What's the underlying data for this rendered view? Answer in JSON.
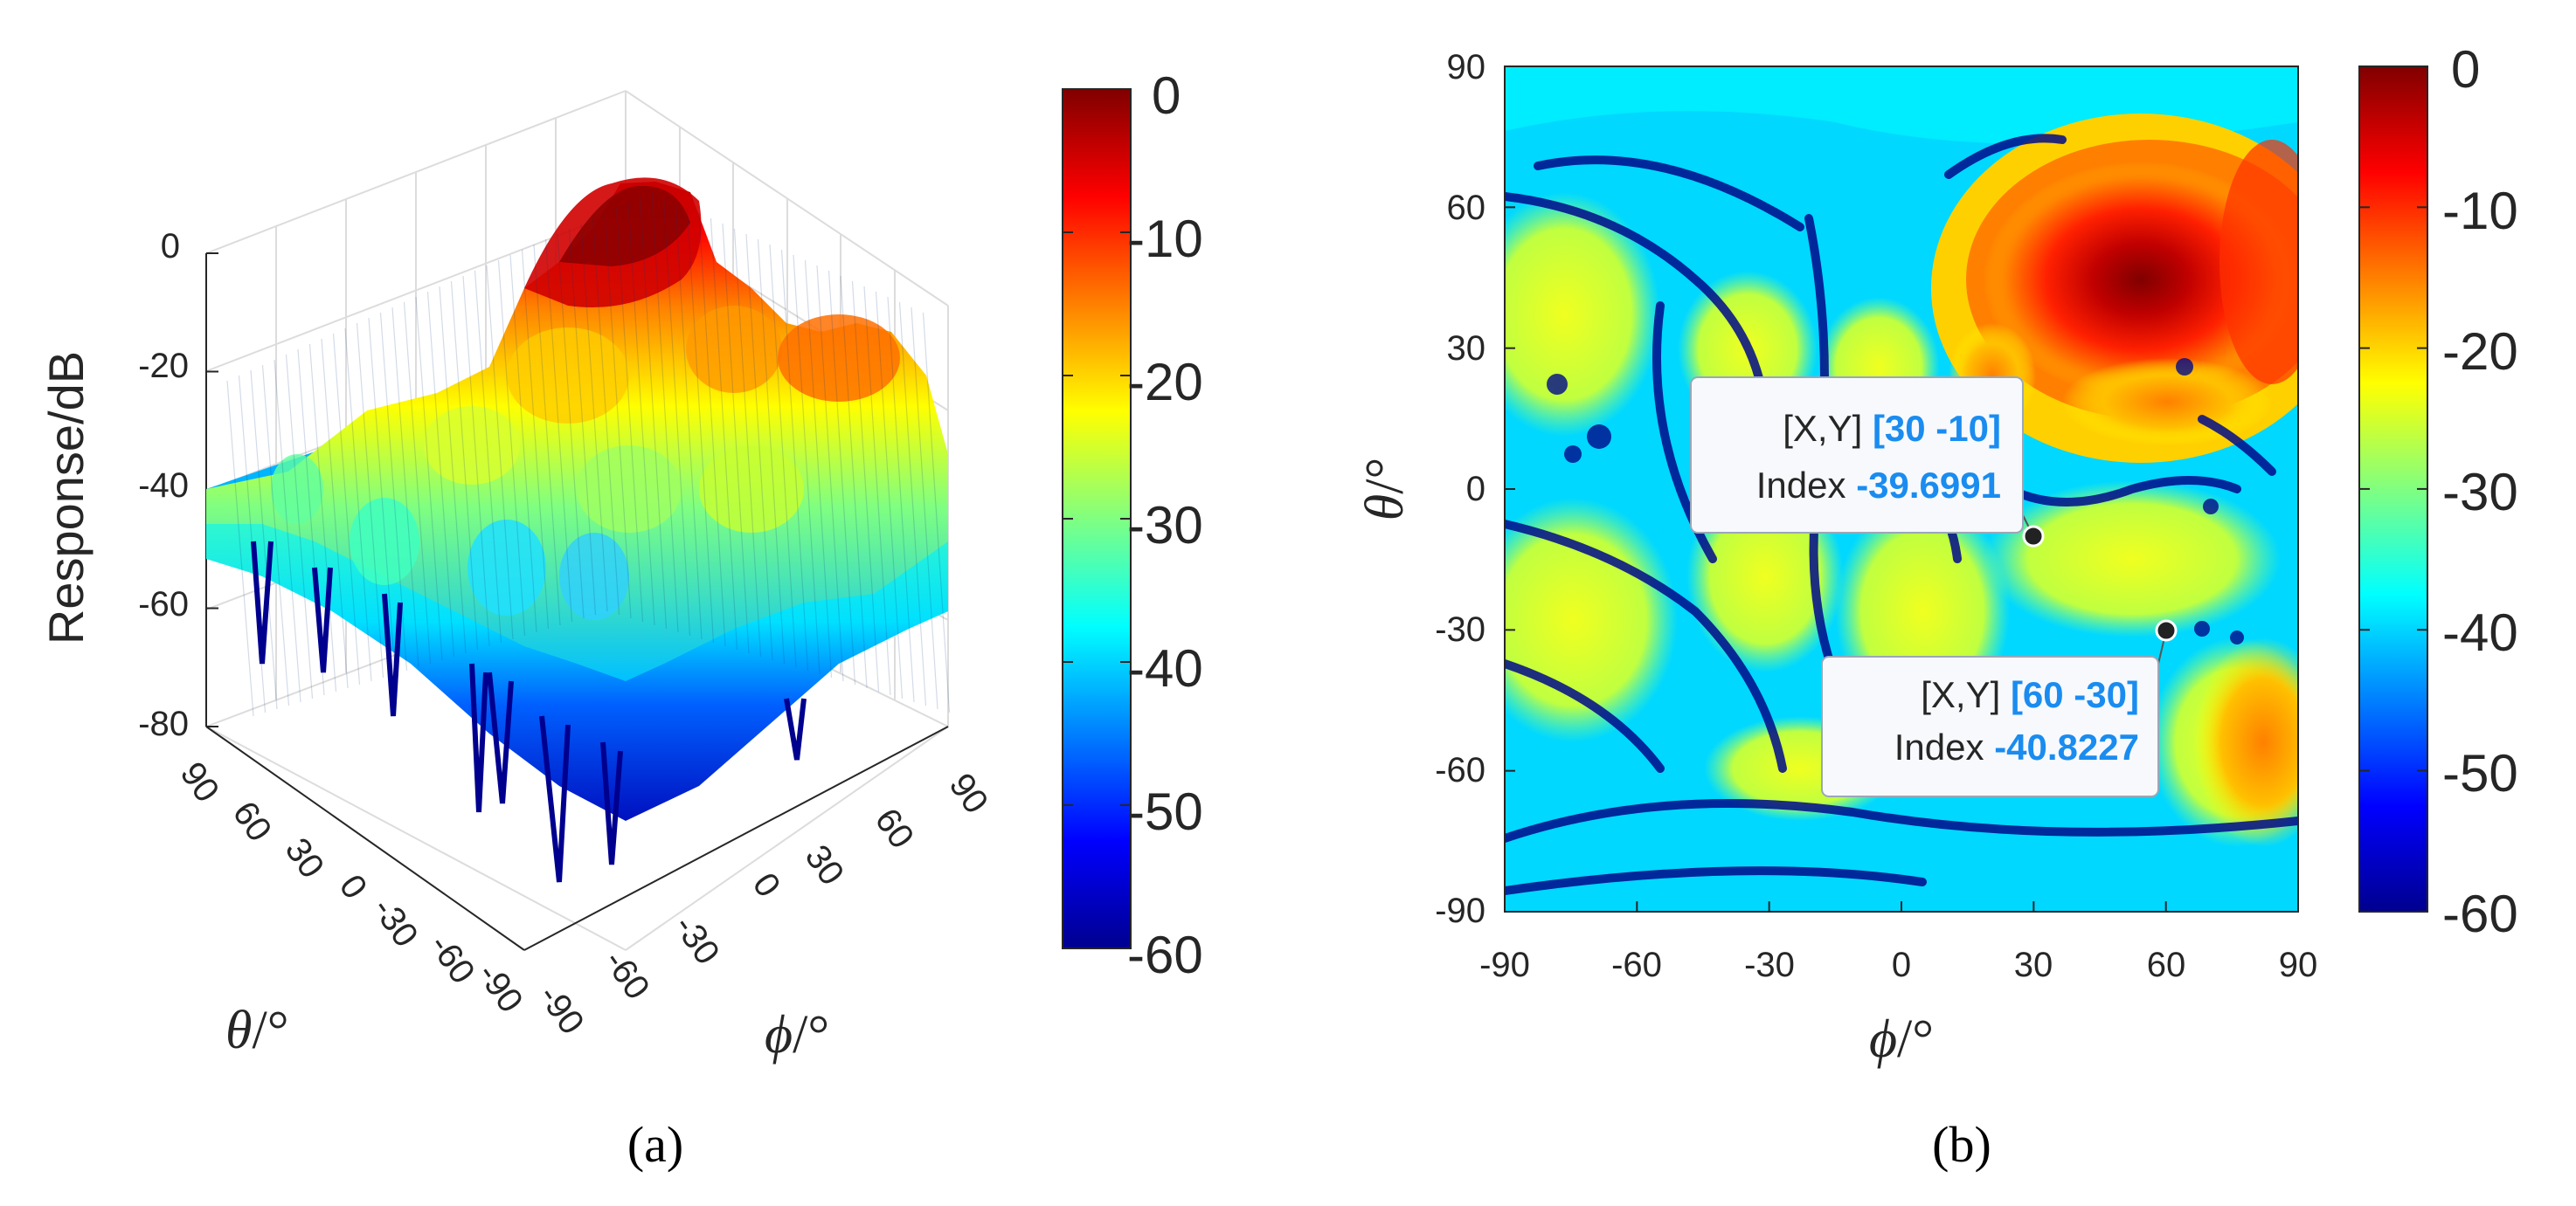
{
  "chart_data": [
    {
      "panel": "(a)",
      "type": "surface3d",
      "zlabel": "Response/dB",
      "xlabel_symbol": "ϕ",
      "ylabel_symbol": "θ",
      "unit": "/°",
      "ticks": {
        "z": [
          "0",
          "-20",
          "-40",
          "-60",
          "-80"
        ],
        "theta": [
          "90",
          "60",
          "30",
          "0",
          "-30",
          "-60",
          "-90"
        ],
        "phi": [
          "-90",
          "-60",
          "-30",
          "0",
          "30",
          "60",
          "90"
        ]
      },
      "xlim": [
        -90,
        90
      ],
      "ylim": [
        -90,
        90
      ],
      "zlim": [
        -80,
        0
      ],
      "colorbar": {
        "colormap": "jet",
        "ticks": [
          "0",
          "-10",
          "-20",
          "-30",
          "-40",
          "-50",
          "-60"
        ],
        "clim": [
          -60,
          0
        ]
      },
      "peak": {
        "phi": 45,
        "theta": 40,
        "value": 0
      }
    },
    {
      "panel": "(b)",
      "type": "heatmap",
      "xlabel_symbol": "ϕ",
      "ylabel_symbol": "θ",
      "unit": "/°",
      "xticks": [
        "-90",
        "-60",
        "-30",
        "0",
        "30",
        "60",
        "90"
      ],
      "yticks": [
        "90",
        "60",
        "30",
        "0",
        "-30",
        "-60",
        "-90"
      ],
      "xlim": [
        -90,
        90
      ],
      "ylim": [
        -90,
        90
      ],
      "colorbar": {
        "colormap": "jet",
        "ticks": [
          "0",
          "-10",
          "-20",
          "-30",
          "-40",
          "-50",
          "-60"
        ],
        "clim": [
          -60,
          0
        ]
      },
      "peak": {
        "phi": 45,
        "theta": 40,
        "value": 0
      },
      "datatips": [
        {
          "xy_label": "[X,Y]",
          "xy_value": "[30 -10]",
          "index_label": "Index",
          "index_value": "-39.6991",
          "phi": 30,
          "theta": -10
        },
        {
          "xy_label": "[X,Y]",
          "xy_value": "[60 -30]",
          "index_label": "Index",
          "index_value": "-40.8227",
          "phi": 60,
          "theta": -30
        }
      ]
    }
  ],
  "captions": {
    "a": "(a)",
    "b": "(b)"
  },
  "colors": {
    "jet": [
      "#00008f",
      "#0000ff",
      "#0080ff",
      "#00ffff",
      "#80ff80",
      "#ffff00",
      "#ff8000",
      "#ff0000",
      "#800000"
    ],
    "datatip_value": "#1a8cf0"
  }
}
